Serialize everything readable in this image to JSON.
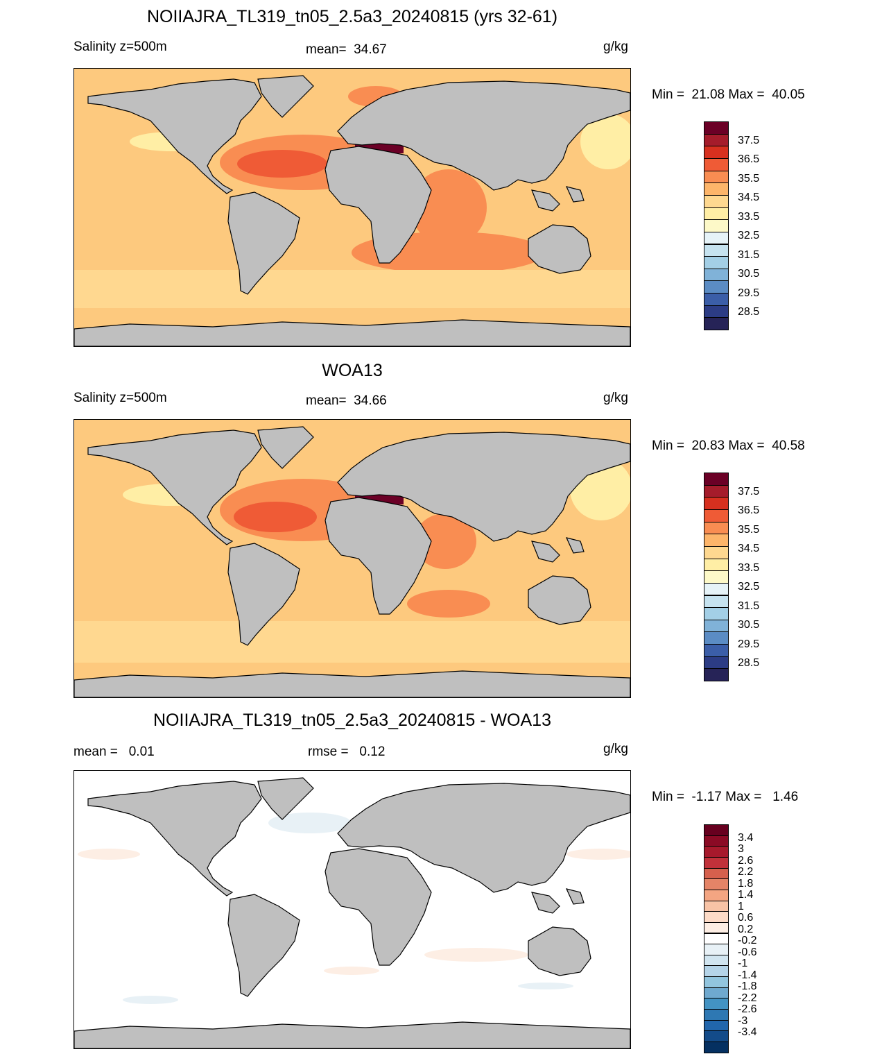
{
  "colors": {
    "land": "#bfbfbf",
    "coastline": "#000000",
    "background": "#ffffff"
  },
  "panels": [
    {
      "title": "NOIIAJRA_TL319_tn05_2.5a3_20240815 (yrs 32-61)",
      "left_text": "Salinity z=500m",
      "center_text": "mean=  34.67",
      "units": "g/kg",
      "minmax": "Min =  21.08 Max =  40.05",
      "ocean_base": "#fdc97e",
      "colorbar": {
        "colors": [
          "#6b0026",
          "#a51c2b",
          "#d7301f",
          "#ef5b36",
          "#f98d52",
          "#fdb56a",
          "#fed890",
          "#ffeea5",
          "#fdf9c8",
          "#e6f3f8",
          "#c6e3f0",
          "#a3cfe6",
          "#80b2d8",
          "#5b8cc4",
          "#3b5ea8",
          "#2c3c85",
          "#262357"
        ],
        "labels": [
          "37.5",
          "36.5",
          "35.5",
          "34.5",
          "33.5",
          "32.5",
          "31.5",
          "30.5",
          "29.5",
          "28.5"
        ]
      }
    },
    {
      "title": "WOA13",
      "left_text": "Salinity z=500m",
      "center_text": "mean=  34.66",
      "units": "g/kg",
      "minmax": "Min =  20.83 Max =  40.58",
      "ocean_base": "#fdc97e",
      "colorbar": {
        "colors": [
          "#6b0026",
          "#a51c2b",
          "#d7301f",
          "#ef5b36",
          "#f98d52",
          "#fdb56a",
          "#fed890",
          "#ffeea5",
          "#fdf9c8",
          "#e6f3f8",
          "#c6e3f0",
          "#a3cfe6",
          "#80b2d8",
          "#5b8cc4",
          "#3b5ea8",
          "#2c3c85",
          "#262357"
        ],
        "labels": [
          "37.5",
          "36.5",
          "35.5",
          "34.5",
          "33.5",
          "32.5",
          "31.5",
          "30.5",
          "29.5",
          "28.5"
        ]
      }
    },
    {
      "title": "NOIIAJRA_TL319_tn05_2.5a3_20240815 - WOA13",
      "left_text": "mean =   0.01",
      "center_text": "rmse =   0.12",
      "units": "g/kg",
      "minmax": "Min =  -1.17 Max =   1.46",
      "ocean_base": "#ffffff",
      "colorbar": {
        "colors": [
          "#67001f",
          "#8b0a25",
          "#a7192c",
          "#c1313a",
          "#d6604d",
          "#e58467",
          "#f4a582",
          "#f8c3a6",
          "#fddbc7",
          "#fdeee4",
          "#ffffff",
          "#e8f1f6",
          "#d1e5f0",
          "#b5d4e8",
          "#92c5de",
          "#6fa9cf",
          "#4393c3",
          "#2e78b3",
          "#2166ac",
          "#134b89",
          "#053061"
        ],
        "labels": [
          "3.4",
          "3",
          "2.6",
          "2.2",
          "1.8",
          "1.4",
          "1",
          "0.6",
          "0.2",
          "-0.2",
          "-0.6",
          "-1",
          "-1.4",
          "-1.8",
          "-2.2",
          "-2.6",
          "-3",
          "-3.4"
        ]
      }
    }
  ]
}
